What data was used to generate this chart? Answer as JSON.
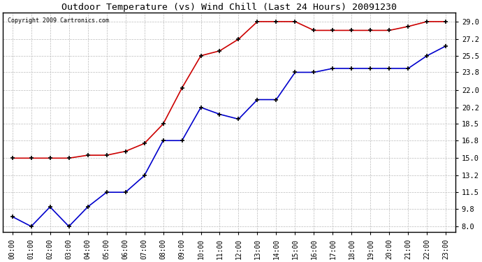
{
  "title": "Outdoor Temperature (vs) Wind Chill (Last 24 Hours) 20091230",
  "copyright": "Copyright 2009 Cartronics.com",
  "hours": [
    "00:00",
    "01:00",
    "02:00",
    "03:00",
    "04:00",
    "05:00",
    "06:00",
    "07:00",
    "08:00",
    "09:00",
    "10:00",
    "11:00",
    "12:00",
    "13:00",
    "14:00",
    "15:00",
    "16:00",
    "17:00",
    "18:00",
    "19:00",
    "20:00",
    "21:00",
    "22:00",
    "23:00"
  ],
  "temp": [
    15.0,
    15.0,
    15.0,
    15.0,
    15.3,
    15.3,
    15.7,
    16.5,
    18.5,
    22.2,
    25.5,
    26.0,
    27.2,
    29.0,
    29.0,
    29.0,
    28.1,
    28.1,
    28.1,
    28.1,
    28.1,
    28.5,
    29.0,
    29.0
  ],
  "windchill": [
    9.0,
    8.0,
    10.0,
    8.0,
    10.0,
    11.5,
    11.5,
    13.2,
    16.8,
    16.8,
    20.2,
    19.5,
    19.0,
    21.0,
    21.0,
    23.8,
    23.8,
    24.2,
    24.2,
    24.2,
    24.2,
    24.2,
    25.5,
    26.5
  ],
  "temp_color": "#cc0000",
  "windchill_color": "#0000cc",
  "bg_color": "#ffffff",
  "grid_color": "#bbbbbb",
  "yticks": [
    8.0,
    9.8,
    11.5,
    13.2,
    15.0,
    16.8,
    18.5,
    20.2,
    22.0,
    23.8,
    25.5,
    27.2,
    29.0
  ],
  "ylim": [
    7.4,
    29.9
  ],
  "marker": "+"
}
